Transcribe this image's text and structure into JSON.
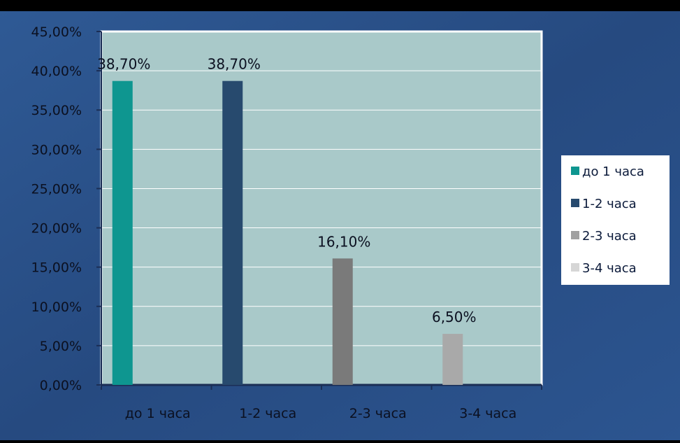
{
  "chart_data": {
    "type": "bar",
    "categories": [
      "до 1 часа",
      "1-2 часа",
      "2-3 часа",
      "3-4 часа"
    ],
    "values": [
      38.7,
      38.7,
      16.1,
      6.5
    ],
    "data_labels": [
      "38,70%",
      "38,70%",
      "16,10%",
      "6,50%"
    ],
    "y_tick_labels": [
      "0,00%",
      "5,00%",
      "10,00%",
      "15,00%",
      "20,00%",
      "25,00%",
      "30,00%",
      "35,00%",
      "40,00%",
      "45,00%"
    ],
    "ylim": [
      0,
      45
    ],
    "ytick_step": 5,
    "grid": true,
    "legend_position": "right",
    "legend": [
      "до 1 часа",
      "1-2 часа",
      "2-3 часа",
      "3-4 часа"
    ],
    "title": "",
    "xlabel": "",
    "ylabel": "",
    "colors": [
      "#0e9690",
      "#274a6e",
      "#7a7a7a",
      "#a9a9a9"
    ],
    "legend_colors": [
      "#0e9690",
      "#274a6e",
      "#a0a0a0",
      "#d6d6d6"
    ],
    "plot_background": "#a9c9c9",
    "page_background": "#2b4f86"
  }
}
